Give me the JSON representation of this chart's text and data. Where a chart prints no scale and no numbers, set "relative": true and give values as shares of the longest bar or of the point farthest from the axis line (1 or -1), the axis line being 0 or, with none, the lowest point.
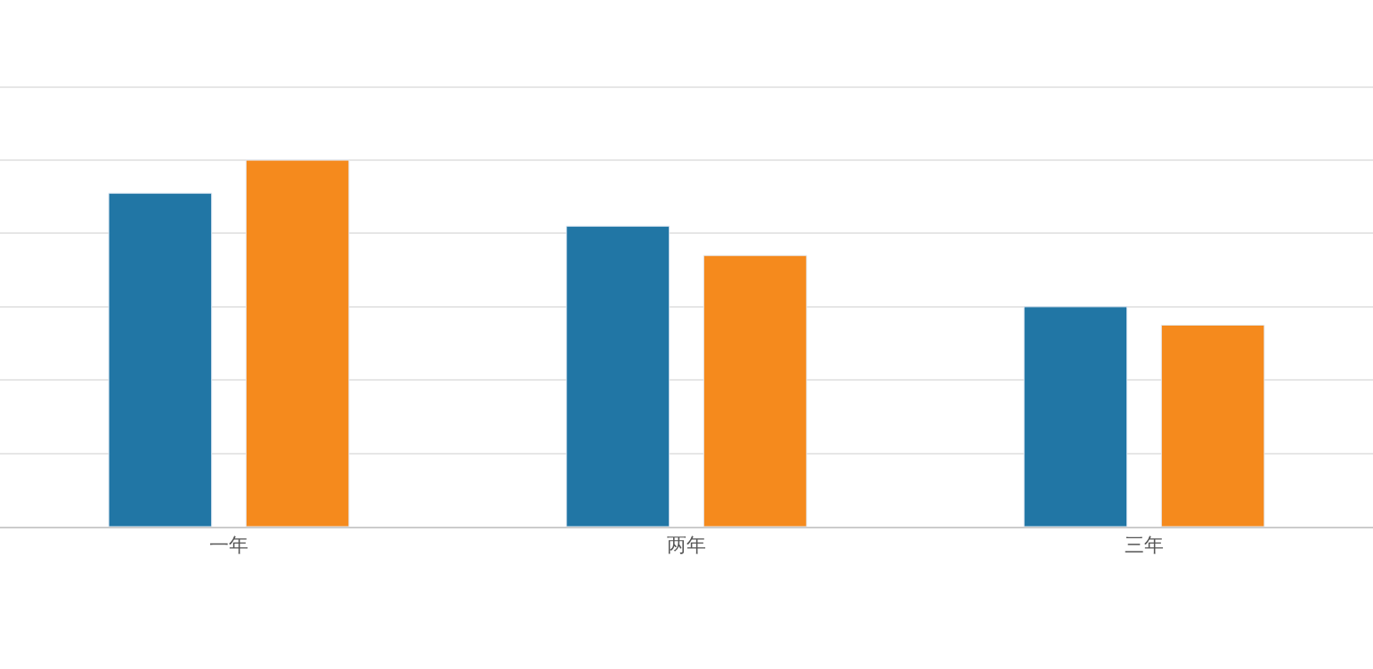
{
  "chart_data": {
    "type": "bar",
    "relative": true,
    "categories": [
      "一年",
      "两年",
      "三年"
    ],
    "series": [
      {
        "color": "#2176a5",
        "values": [
          0.91,
          0.82,
          0.6
        ]
      },
      {
        "color": "#f58a1d",
        "values": [
          1,
          0.74,
          0.55
        ]
      }
    ],
    "grid": "y"
  }
}
